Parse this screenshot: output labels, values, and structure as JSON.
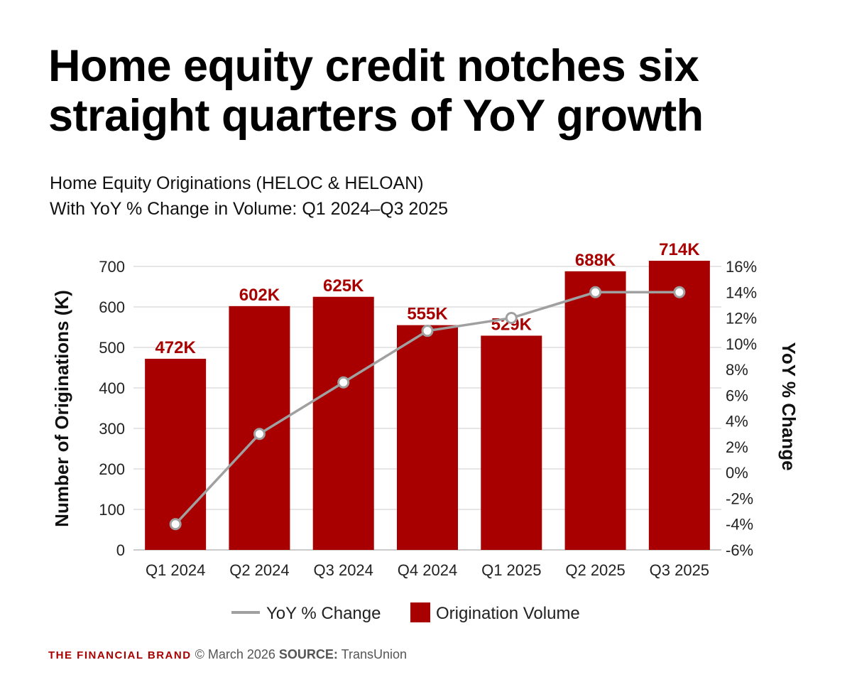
{
  "title": "Home equity credit notches six straight quarters of YoY growth",
  "subtitle_line1": "Home Equity Originations (HELOC & HELOAN)",
  "subtitle_line2": "With YoY % Change in Volume: Q1 2024–Q3 2025",
  "footer": {
    "brand": "THE FINANCIAL BRAND",
    "copyright": "© March 2026",
    "source_label": "SOURCE:",
    "source": "TransUnion"
  },
  "chart_data": {
    "type": "bar",
    "categories": [
      "Q1 2024",
      "Q2 2024",
      "Q3 2024",
      "Q4 2024",
      "Q1 2025",
      "Q2 2025",
      "Q3 2025"
    ],
    "series": [
      {
        "name": "Origination Volume",
        "type": "bar",
        "axis": "left",
        "values": [
          472,
          602,
          625,
          555,
          529,
          688,
          714
        ],
        "labels": [
          "472K",
          "602K",
          "625K",
          "555K",
          "529K",
          "688K",
          "714K"
        ],
        "color": "#a80000"
      },
      {
        "name": "YoY % Change",
        "type": "line",
        "axis": "right",
        "values": [
          -4,
          3,
          7,
          11,
          12,
          14,
          14
        ],
        "color": "#a0a0a0"
      }
    ],
    "ylabel": "Number of Originations (K)",
    "y2label": "YoY % Change",
    "ylim": [
      0,
      700
    ],
    "yticks": [
      "0",
      "100",
      "200",
      "300",
      "400",
      "500",
      "600",
      "700"
    ],
    "y2lim": [
      -6,
      16
    ],
    "y2ticks": [
      "-6%",
      "-4%",
      "-2%",
      "0%",
      "2%",
      "4%",
      "6%",
      "8%",
      "10%",
      "12%",
      "14%",
      "16%"
    ],
    "grid": true,
    "legend": "bottom-center"
  }
}
